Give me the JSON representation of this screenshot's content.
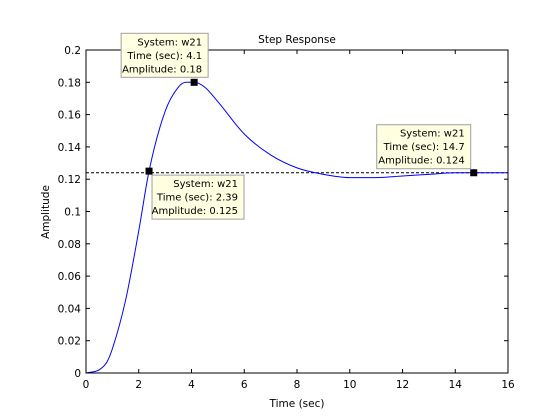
{
  "chart_data": {
    "type": "line",
    "title": "Step Response",
    "xlabel": "Time (sec)",
    "ylabel": "Amplitude",
    "xlim": [
      0,
      16
    ],
    "ylim": [
      0,
      0.2
    ],
    "x_ticks": [
      0,
      2,
      4,
      6,
      8,
      10,
      12,
      14,
      16
    ],
    "x_tick_labels": [
      "0",
      "2",
      "4",
      "6",
      "8",
      "10",
      "12",
      "14",
      "16"
    ],
    "y_ticks": [
      0,
      0.02,
      0.04,
      0.06,
      0.08,
      0.1,
      0.12,
      0.14,
      0.16,
      0.18,
      0.2
    ],
    "y_tick_labels": [
      "0",
      "0.02",
      "0.04",
      "0.06",
      "0.08",
      "0.1",
      "0.12",
      "0.14",
      "0.16",
      "0.18",
      "0.2"
    ],
    "grid": false,
    "steady_state": 0.124,
    "series": [
      {
        "color": "#0000ff",
        "x": [
          0,
          0.5,
          0.8,
          1.0,
          1.5,
          2.0,
          2.39,
          3.0,
          3.5,
          3.8,
          4.1,
          4.5,
          5.0,
          6.0,
          7.0,
          8.0,
          9.0,
          10.0,
          11.0,
          12.0,
          13.0,
          14.0,
          14.7,
          16.0
        ],
        "y": [
          0,
          0.002,
          0.007,
          0.015,
          0.045,
          0.088,
          0.125,
          0.162,
          0.177,
          0.18,
          0.18,
          0.177,
          0.168,
          0.148,
          0.135,
          0.127,
          0.123,
          0.121,
          0.121,
          0.122,
          0.123,
          0.124,
          0.124,
          0.124
        ]
      }
    ],
    "markers": [
      {
        "x": 4.1,
        "y": 0.18
      },
      {
        "x": 2.39,
        "y": 0.125
      },
      {
        "x": 14.7,
        "y": 0.124
      }
    ],
    "datatips": [
      {
        "lines": [
          "System: w21",
          "Time (sec): 4.1",
          "Amplitude: 0.18"
        ]
      },
      {
        "lines": [
          "System: w21",
          "Time (sec): 2.39",
          "Amplitude: 0.125"
        ]
      },
      {
        "lines": [
          "System: w21",
          "Time (sec): 14.7",
          "Amplitude: 0.124"
        ]
      }
    ]
  },
  "colors": {
    "line": "#0000ff",
    "tip_fill": "#ffffe1",
    "tip_border": "#a0a0a0",
    "reference_line": "#000000",
    "marker": "#000000"
  }
}
